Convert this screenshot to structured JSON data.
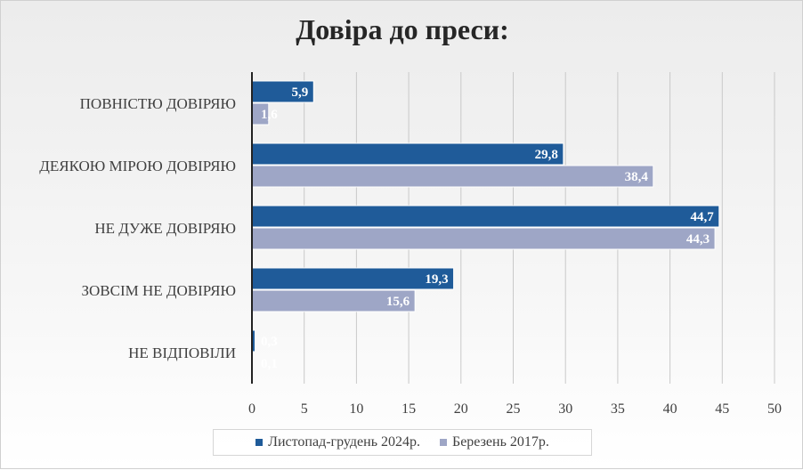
{
  "chart_data": {
    "type": "bar",
    "orientation": "horizontal",
    "title": "Довіра до преси:",
    "categories": [
      "ПОВНІСТЮ ДОВІРЯЮ",
      "ДЕЯКОЮ МІРОЮ ДОВІРЯЮ",
      "НЕ ДУЖЕ ДОВІРЯЮ",
      "ЗОВСІМ НЕ ДОВІРЯЮ",
      "НЕ ВІДПОВІЛИ"
    ],
    "series": [
      {
        "name": "Листопад-грудень 2024р.",
        "values": [
          5.9,
          29.8,
          44.7,
          19.3,
          0.3
        ],
        "labels": [
          "5,9",
          "29,8",
          "44,7",
          "19,3",
          "0,3"
        ],
        "color": "#1f5b99"
      },
      {
        "name": "Березень 2017р.",
        "values": [
          1.6,
          38.4,
          44.3,
          15.6,
          0.1
        ],
        "labels": [
          "1,6",
          "38,4",
          "44,3",
          "15,6",
          "0,1"
        ],
        "color": "#9ea6c6"
      }
    ],
    "xlim": [
      0,
      50
    ],
    "xticks": [
      0,
      5,
      10,
      15,
      20,
      25,
      30,
      35,
      40,
      45,
      50
    ],
    "grid": true,
    "legend_position": "bottom"
  }
}
